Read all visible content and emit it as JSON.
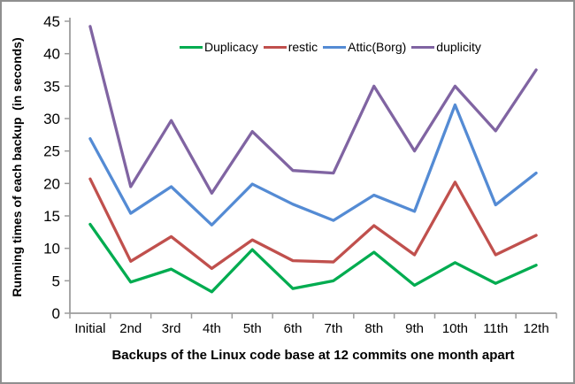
{
  "chart_data": {
    "type": "line",
    "title": "",
    "xlabel": "Backups of the Linux code base at 12 commits one month apart",
    "ylabel": "Running times of each backup  (in seconds)",
    "categories": [
      "Initial",
      "2nd",
      "3rd",
      "4th",
      "5th",
      "6th",
      "7th",
      "8th",
      "9th",
      "10th",
      "11th",
      "12th"
    ],
    "series": [
      {
        "name": "Duplicacy",
        "color": "#00AC50",
        "values": [
          13.7,
          4.8,
          6.8,
          3.3,
          9.8,
          3.8,
          5.0,
          9.4,
          4.3,
          7.8,
          4.6,
          7.4
        ]
      },
      {
        "name": "restic",
        "color": "#C0504D",
        "values": [
          20.7,
          8.0,
          11.8,
          6.9,
          11.3,
          8.1,
          7.9,
          13.5,
          9.0,
          20.2,
          9.0,
          12.0
        ]
      },
      {
        "name": "Attic(Borg)",
        "color": "#548BD4",
        "values": [
          26.9,
          15.4,
          19.5,
          13.6,
          19.9,
          16.8,
          14.3,
          18.2,
          15.7,
          32.1,
          16.7,
          21.6
        ]
      },
      {
        "name": "duplicity",
        "color": "#8064A2",
        "values": [
          44.2,
          19.5,
          29.7,
          18.5,
          28.0,
          22.0,
          21.6,
          35.0,
          25.0,
          35.0,
          28.1,
          37.5
        ]
      }
    ],
    "ylim": [
      0,
      45
    ],
    "ytick_step": 5,
    "grid": false,
    "legend_position": "top-center",
    "axis_color": "#9c9c9c",
    "text_color": "#000000",
    "line_width": 3.3
  }
}
